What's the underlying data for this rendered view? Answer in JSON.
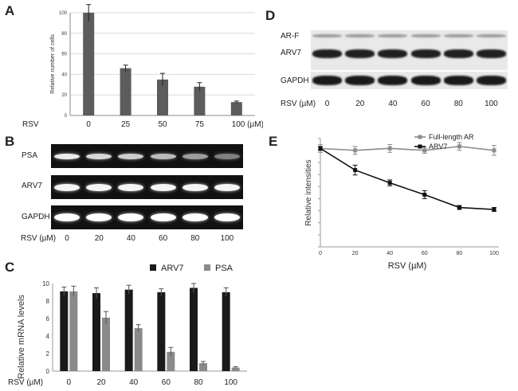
{
  "panels": {
    "a": "A",
    "b": "B",
    "c": "C",
    "d": "D",
    "e": "E"
  },
  "panelA": {
    "chart_data": {
      "type": "bar",
      "title": "",
      "ylabel": "Relative number of cells",
      "xlabel_prefix": "RSV",
      "categories": [
        "0",
        "25",
        "50",
        "75",
        "100 (µM)"
      ],
      "values": [
        100,
        46,
        35,
        28,
        13
      ],
      "errors": [
        8,
        3,
        6,
        4,
        1
      ],
      "ylim": [
        0,
        100
      ],
      "yticks": [
        "0",
        "20",
        "40",
        "60",
        "80",
        "100"
      ],
      "color": "#5c5c5c"
    }
  },
  "panelB": {
    "rows": [
      "PSA",
      "ARV7",
      "GAPDH"
    ],
    "xlabel": "RSV (µM)",
    "lanes": [
      "0",
      "20",
      "40",
      "60",
      "80",
      "100"
    ],
    "psa_intensity": [
      0.9,
      0.8,
      0.75,
      0.65,
      0.5,
      0.35
    ]
  },
  "panelC": {
    "chart_data": {
      "type": "bar",
      "ylabel": "Relative mRNA levels",
      "xlabel": "RSV (µM)",
      "categories": [
        "0",
        "20",
        "40",
        "60",
        "80",
        "100"
      ],
      "series": [
        {
          "name": "ARV7",
          "color": "#1a1a1a",
          "values": [
            9.1,
            8.9,
            9.3,
            9.0,
            9.5,
            9.0
          ],
          "errors": [
            0.5,
            0.6,
            0.5,
            0.4,
            0.5,
            0.5
          ]
        },
        {
          "name": "PSA",
          "color": "#8a8a8a",
          "values": [
            9.1,
            6.1,
            4.9,
            2.2,
            0.9,
            0.4
          ],
          "errors": [
            0.6,
            0.7,
            0.4,
            0.5,
            0.2,
            0.1
          ]
        }
      ],
      "ylim": [
        0,
        10
      ],
      "yticks": [
        "0",
        "2",
        "4",
        "6",
        "8",
        "10"
      ]
    }
  },
  "panelD": {
    "rows": [
      "AR-F",
      "ARV7",
      "GAPDH"
    ],
    "xlabel": "RSV (µM)",
    "lanes": [
      "0",
      "20",
      "40",
      "60",
      "80",
      "100"
    ]
  },
  "panelE": {
    "chart_data": {
      "type": "line",
      "ylabel": "Relative intensities",
      "xlabel": "RSV (µM)",
      "x": [
        0,
        20,
        40,
        60,
        80,
        100
      ],
      "xticks": [
        "0",
        "20",
        "40",
        "60",
        "80",
        "100"
      ],
      "series": [
        {
          "name": "Full-length AR",
          "color": "#8c8c8c",
          "values": [
            1.0,
            0.98,
            1.0,
            0.98,
            1.02,
            0.98
          ],
          "errors": [
            0.04,
            0.04,
            0.04,
            0.03,
            0.04,
            0.05
          ]
        },
        {
          "name": "ARV7",
          "color": "#111111",
          "values": [
            1.0,
            0.78,
            0.65,
            0.53,
            0.4,
            0.38
          ],
          "errors": [
            0.02,
            0.05,
            0.03,
            0.04,
            0.02,
            0.02
          ]
        }
      ],
      "ylim": [
        0,
        1.1
      ]
    }
  }
}
